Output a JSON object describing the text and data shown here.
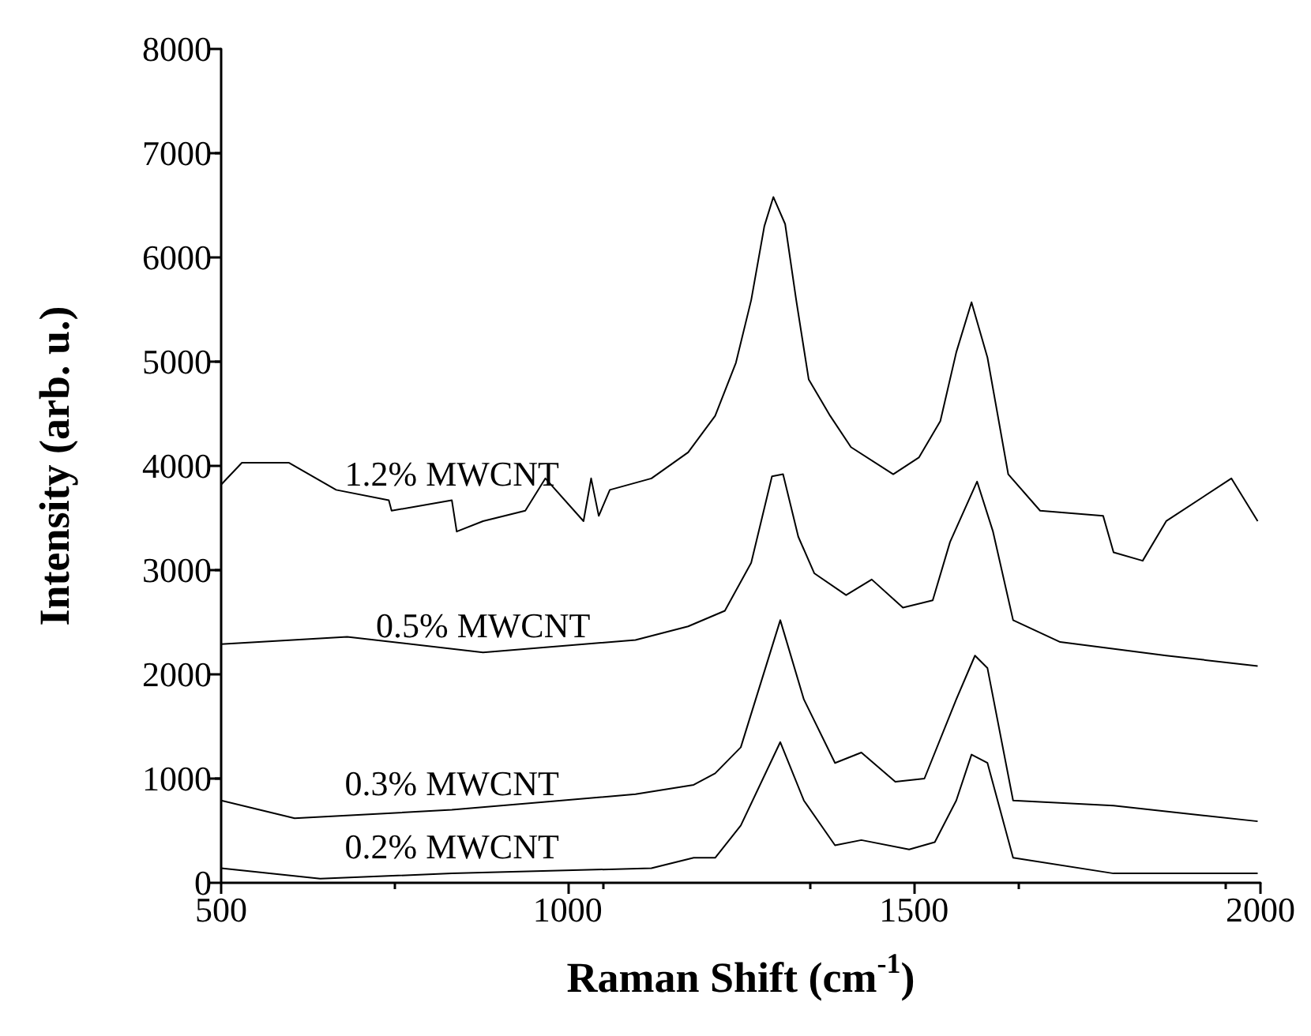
{
  "chart_data": {
    "type": "line",
    "xlabel": "Raman Shift (cm$^{-1}$)",
    "ylabel": "Intensity (arb. u.)",
    "xlim": [
      500,
      2000
    ],
    "xticks": [
      500,
      1000,
      1500,
      2000
    ],
    "ylim": [
      0,
      8000
    ],
    "yticks": [
      0,
      1000,
      2000,
      3000,
      4000,
      5000,
      6000,
      7000,
      8000
    ],
    "grid": false,
    "legend": false,
    "marker": "none",
    "line_style": "solid",
    "series": [
      {
        "name": "1.2% MWCNT",
        "color": "#000000",
        "x": [
          500,
          530,
          598,
          666,
          742,
          746,
          833,
          840,
          878,
          939,
          968,
          1023,
          1034,
          1045,
          1061,
          1121,
          1174,
          1213,
          1243,
          1265,
          1284,
          1297,
          1314,
          1330,
          1348,
          1379,
          1409,
          1470,
          1507,
          1538,
          1561,
          1583,
          1606,
          1636,
          1682,
          1773,
          1788,
          1830,
          1864,
          1958,
          1996
        ],
        "values": [
          3820,
          4030,
          4030,
          3770,
          3670,
          3570,
          3670,
          3370,
          3470,
          3570,
          3880,
          3470,
          3880,
          3520,
          3770,
          3880,
          4130,
          4480,
          4990,
          5590,
          6300,
          6580,
          6320,
          5590,
          4830,
          4480,
          4180,
          3920,
          4080,
          4430,
          5090,
          5570,
          5040,
          3920,
          3570,
          3520,
          3170,
          3090,
          3470,
          3880,
          3470
        ]
      },
      {
        "name": "0.5% MWCNT",
        "color": "#000000",
        "x": [
          500,
          682,
          878,
          1098,
          1174,
          1227,
          1265,
          1295,
          1311,
          1333,
          1356,
          1402,
          1439,
          1484,
          1527,
          1552,
          1591,
          1614,
          1643,
          1711,
          1864,
          1996
        ],
        "values": [
          2290,
          2360,
          2210,
          2330,
          2460,
          2610,
          3070,
          3900,
          3920,
          3320,
          2970,
          2760,
          2910,
          2640,
          2710,
          3270,
          3850,
          3370,
          2520,
          2310,
          2180,
          2080
        ]
      },
      {
        "name": "0.3% MWCNT",
        "color": "#000000",
        "x": [
          500,
          606,
          833,
          1098,
          1182,
          1213,
          1250,
          1307,
          1341,
          1386,
          1424,
          1473,
          1515,
          1561,
          1588,
          1606,
          1643,
          1788,
          1996
        ],
        "values": [
          790,
          620,
          700,
          850,
          940,
          1050,
          1300,
          2520,
          1760,
          1150,
          1250,
          970,
          1000,
          1760,
          2180,
          2060,
          790,
          740,
          590
        ]
      },
      {
        "name": "0.2% MWCNT",
        "color": "#000000",
        "x": [
          500,
          643,
          833,
          1121,
          1182,
          1213,
          1250,
          1307,
          1341,
          1386,
          1424,
          1493,
          1530,
          1561,
          1583,
          1606,
          1643,
          1788,
          1996
        ],
        "values": [
          140,
          40,
          90,
          140,
          240,
          240,
          550,
          1350,
          790,
          360,
          410,
          320,
          390,
          790,
          1230,
          1150,
          240,
          90,
          90
        ]
      }
    ]
  }
}
